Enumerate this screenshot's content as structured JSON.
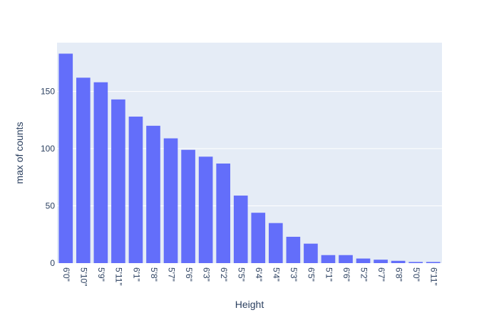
{
  "colors": {
    "plot_background": "#E5ECF6",
    "gridline": "#FFFFFF",
    "bar": "#636EFA",
    "text": "#2a3f5f",
    "page_background": "#FFFFFF"
  },
  "chart_data": {
    "type": "bar",
    "xlabel": "Height",
    "ylabel": "max of counts",
    "categories": [
      "6'0\"",
      "5'10\"",
      "5'9\"",
      "5'11\"",
      "6'1\"",
      "5'8\"",
      "5'7\"",
      "5'6\"",
      "6'3\"",
      "6'2\"",
      "5'5\"",
      "6'4\"",
      "5'4\"",
      "5'3\"",
      "6'5\"",
      "5'1\"",
      "6'6\"",
      "5'2\"",
      "6'7\"",
      "6'8\"",
      "5'0\"",
      "6'11\""
    ],
    "values": [
      183,
      162,
      158,
      143,
      128,
      120,
      109,
      99,
      93,
      87,
      59,
      44,
      35,
      23,
      17,
      7,
      7,
      4,
      3,
      2,
      1,
      1
    ],
    "ylim": [
      0,
      192.6
    ],
    "yticks": [
      0,
      50,
      100,
      150
    ],
    "grid": true,
    "legend": "none"
  }
}
